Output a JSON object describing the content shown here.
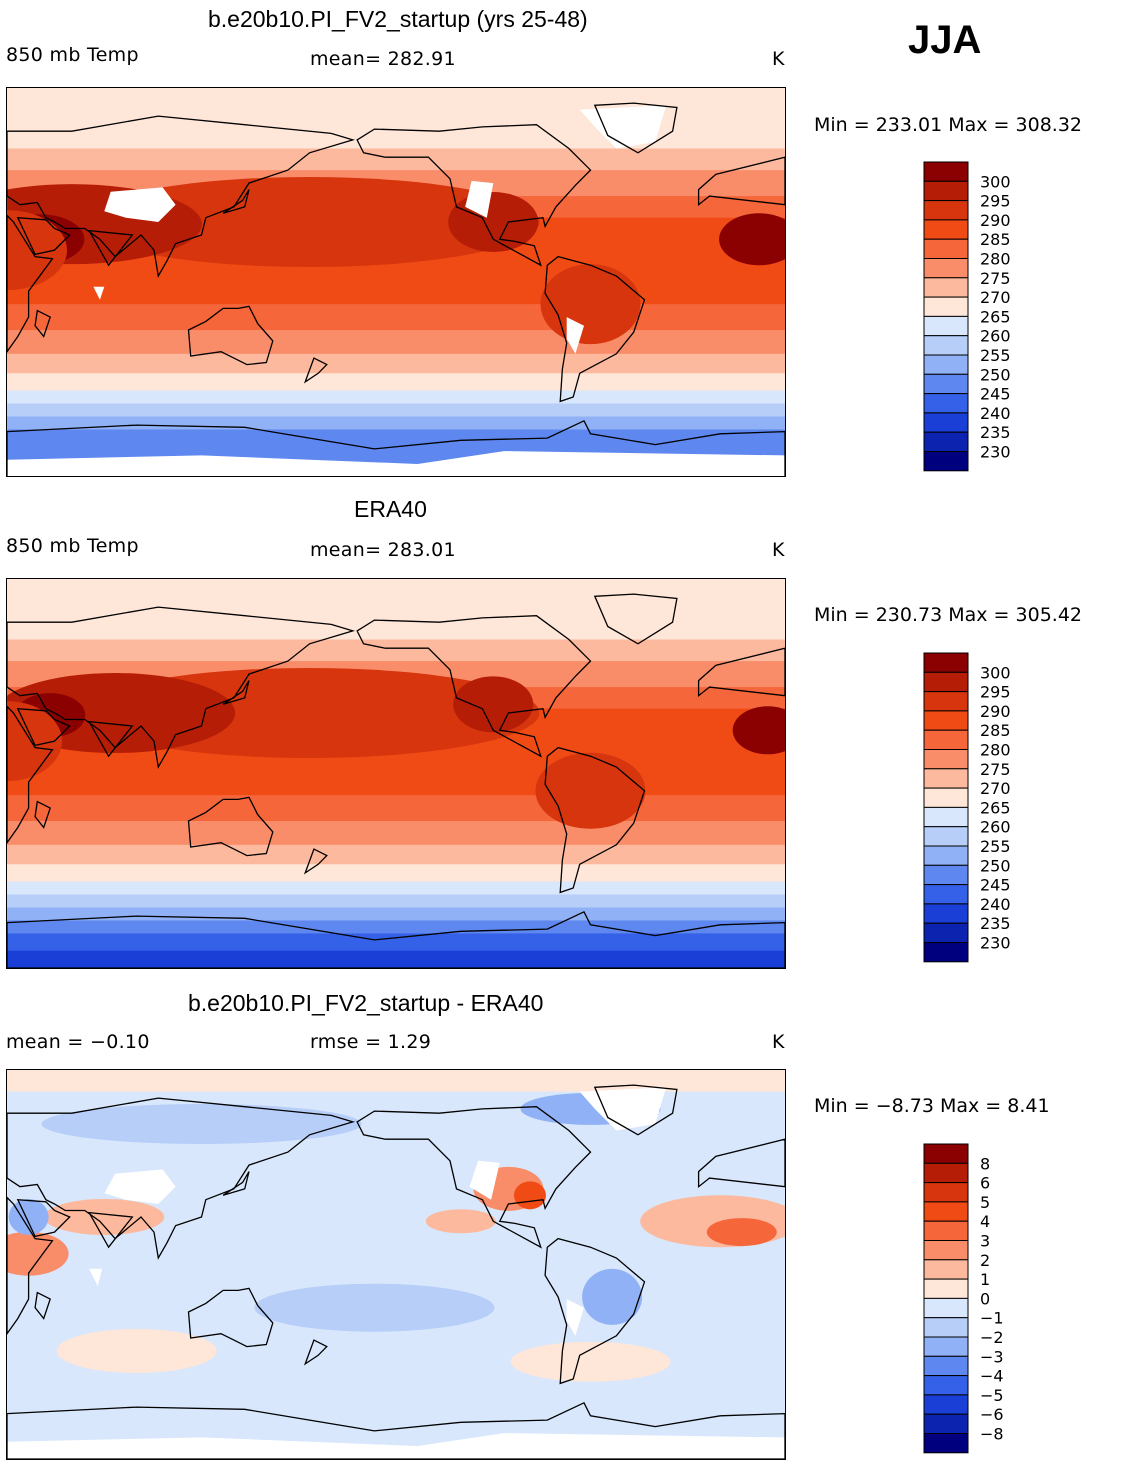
{
  "season": "JJA",
  "panels": [
    {
      "title": "b.e20b10.PI_FV2_startup (yrs 25-48)",
      "left_label": "850 mb Temp",
      "center_label": "mean= 282.91",
      "right_label": "K",
      "minmax": "Min = 233.01 Max = 308.32",
      "colorbar": {
        "labels": [
          "300",
          "295",
          "290",
          "285",
          "280",
          "275",
          "270",
          "265",
          "260",
          "255",
          "250",
          "245",
          "240",
          "235",
          "230"
        ],
        "colors": [
          "#8b0000",
          "#b51d06",
          "#d6350d",
          "#f04b15",
          "#f5663b",
          "#f98d6a",
          "#fcb99d",
          "#fee6d8",
          "#d8e7fb",
          "#b7cef9",
          "#90b1f5",
          "#5e88ef",
          "#3561e8",
          "#1a3fd6",
          "#0c23b0",
          "#00007f"
        ]
      },
      "map_type": "model"
    },
    {
      "title": "ERA40",
      "left_label": "850 mb Temp",
      "center_label": "mean= 283.01",
      "right_label": "K",
      "minmax": "Min = 230.73 Max = 305.42",
      "colorbar": {
        "labels": [
          "300",
          "295",
          "290",
          "285",
          "280",
          "275",
          "270",
          "265",
          "260",
          "255",
          "250",
          "245",
          "240",
          "235",
          "230"
        ],
        "colors": [
          "#8b0000",
          "#b51d06",
          "#d6350d",
          "#f04b15",
          "#f5663b",
          "#f98d6a",
          "#fcb99d",
          "#fee6d8",
          "#d8e7fb",
          "#b7cef9",
          "#90b1f5",
          "#5e88ef",
          "#3561e8",
          "#1a3fd6",
          "#0c23b0",
          "#00007f"
        ]
      },
      "map_type": "obs"
    },
    {
      "title": "b.e20b10.PI_FV2_startup - ERA40",
      "left_label": "mean =   −0.10",
      "center_label": "rmse =    1.29",
      "right_label": "K",
      "minmax": "Min =   −8.73 Max =    8.41",
      "colorbar": {
        "labels": [
          "8",
          "6",
          "5",
          "4",
          "3",
          "2",
          "1",
          "0",
          "−1",
          "−2",
          "−3",
          "−4",
          "−5",
          "−6",
          "−8"
        ],
        "colors": [
          "#8b0000",
          "#b51d06",
          "#d6350d",
          "#f04b15",
          "#f5663b",
          "#f98d6a",
          "#fcb99d",
          "#fee6d8",
          "#d8e7fb",
          "#b7cef9",
          "#90b1f5",
          "#5e88ef",
          "#3561e8",
          "#1a3fd6",
          "#0c23b0",
          "#00007f"
        ]
      },
      "map_type": "diff"
    }
  ]
}
